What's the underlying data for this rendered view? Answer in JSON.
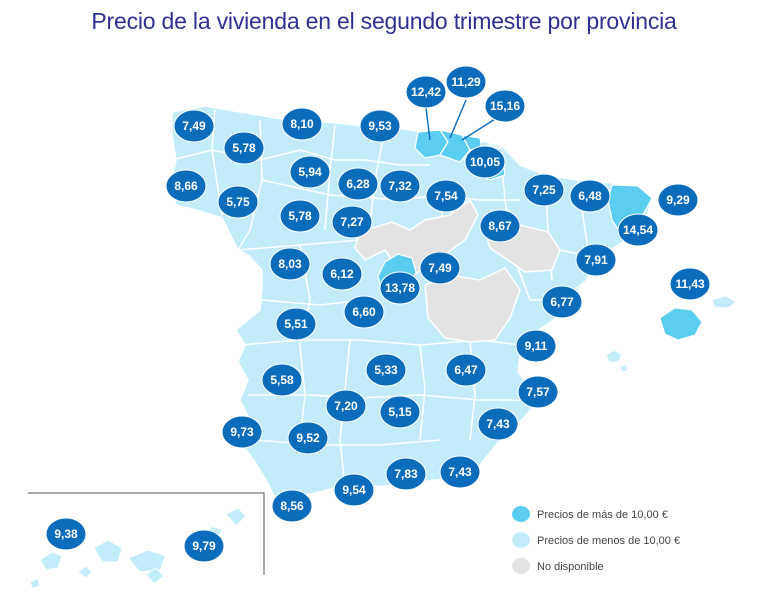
{
  "title": "Precio de la vivienda en el segundo trimestre por provincia",
  "colors": {
    "high": "#5bcdf1",
    "low": "#c3ecfb",
    "unavailable": "#e3e3e3",
    "bubble": "#0b6cbb",
    "title": "#2e3192"
  },
  "legend": [
    {
      "label": "Precios de más de 10,00 €",
      "category": "high"
    },
    {
      "label": "Precios de menos de 10,00 €",
      "category": "low"
    },
    {
      "label": "No disponible",
      "category": "unavailable"
    }
  ],
  "provinces": [
    {
      "value": "7,49"
    },
    {
      "value": "5,78"
    },
    {
      "value": "8,66"
    },
    {
      "value": "5,75"
    },
    {
      "value": "8,10"
    },
    {
      "value": "5,94"
    },
    {
      "value": "5,78"
    },
    {
      "value": "9,53"
    },
    {
      "value": "6,28"
    },
    {
      "value": "7,27"
    },
    {
      "value": "7,32"
    },
    {
      "value": "12,42"
    },
    {
      "value": "11,29"
    },
    {
      "value": "15,16"
    },
    {
      "value": "10,05"
    },
    {
      "value": "7,54"
    },
    {
      "value": "8,67"
    },
    {
      "value": "7,25"
    },
    {
      "value": "6,48"
    },
    {
      "value": "9,29"
    },
    {
      "value": "14,54"
    },
    {
      "value": "7,91"
    },
    {
      "value": "8,03"
    },
    {
      "value": "6,12"
    },
    {
      "value": "13,78"
    },
    {
      "value": "7,49"
    },
    {
      "value": "6,60"
    },
    {
      "value": "5,51"
    },
    {
      "value": "6,77"
    },
    {
      "value": "11,43"
    },
    {
      "value": "9,11"
    },
    {
      "value": "5,58"
    },
    {
      "value": "5,33"
    },
    {
      "value": "6,47"
    },
    {
      "value": "7,57"
    },
    {
      "value": "7,20"
    },
    {
      "value": "5,15"
    },
    {
      "value": "7,43"
    },
    {
      "value": "9,73"
    },
    {
      "value": "9,52"
    },
    {
      "value": "9,54"
    },
    {
      "value": "7,83"
    },
    {
      "value": "7,43"
    },
    {
      "value": "8,56"
    },
    {
      "value": "9,38"
    },
    {
      "value": "9,79"
    }
  ]
}
